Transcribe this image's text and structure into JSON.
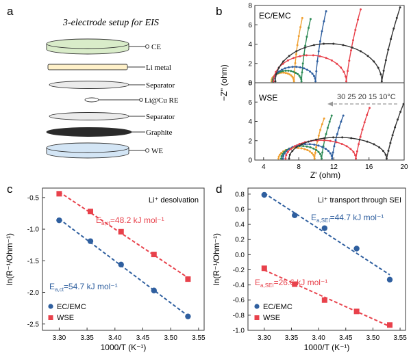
{
  "panels": {
    "a": {
      "letter": "a",
      "title": "3-electrode setup for EIS",
      "layers": [
        "CE",
        "Li metal",
        "Separator",
        "Li@Cu RE",
        "Separator",
        "Graphite",
        "WE"
      ]
    },
    "b": {
      "letter": "b"
    },
    "c": {
      "letter": "c"
    },
    "d": {
      "letter": "d"
    }
  },
  "colors": {
    "blue": "#2f5f9f",
    "red": "#e8414b",
    "orange": "#f0a030",
    "green": "#2e8b57",
    "black": "#333333",
    "ce_fill": "#d9ecc9",
    "li_fill": "#fff1c9",
    "sep_fill": "#ebebeb",
    "graphite": "#2a2a2a",
    "we_fill": "#d3e5f5"
  },
  "chart_data": [
    {
      "id": "b-top",
      "type": "line",
      "label": "EC/EMC",
      "xlim": [
        0,
        16
      ],
      "ylim": [
        0,
        8
      ],
      "yticks": [
        "0",
        "2",
        "4",
        "6",
        "8"
      ],
      "series": [
        {
          "temp": 30,
          "color": "orange",
          "r0": 1.8,
          "r1": 4.2,
          "peak": 0.9,
          "tailTop": 6.7
        },
        {
          "temp": 25,
          "color": "green",
          "r0": 1.9,
          "r1": 5.0,
          "peak": 1.1,
          "tailTop": 6.6
        },
        {
          "temp": 20,
          "color": "blue",
          "r0": 2.0,
          "r1": 6.5,
          "peak": 1.5,
          "tailTop": 7.4
        },
        {
          "temp": 15,
          "color": "red",
          "r0": 2.0,
          "r1": 9.8,
          "peak": 2.7,
          "tailTop": 7.6
        },
        {
          "temp": 10,
          "color": "black",
          "r0": 2.2,
          "r1": 13.6,
          "peak": 3.9,
          "tailTop": 7.8
        }
      ]
    },
    {
      "id": "b-bottom",
      "type": "line",
      "label": "WSE",
      "xlim": [
        3,
        20
      ],
      "ylim": [
        0,
        8
      ],
      "xticks": [
        "4",
        "8",
        "12",
        "16",
        "20"
      ],
      "yticks": [
        "0",
        "2",
        "4",
        "6",
        "8"
      ],
      "temps_label": "30 25 20 15 10°C",
      "xlabel": "Z' (ohm)",
      "ylabel": "−Z'' (ohm)",
      "ylabel_unit": "(ohm)",
      "series": [
        {
          "temp": 30,
          "color": "orange",
          "r0": 5.7,
          "r1": 9.8,
          "peak": 1.1,
          "tailTop": 4.3
        },
        {
          "temp": 25,
          "color": "green",
          "r0": 6.0,
          "r1": 10.6,
          "peak": 1.3,
          "tailTop": 4.6
        },
        {
          "temp": 20,
          "color": "blue",
          "r0": 6.2,
          "r1": 11.8,
          "peak": 1.5,
          "tailTop": 4.6
        },
        {
          "temp": 15,
          "color": "red",
          "r0": 6.5,
          "r1": 14.5,
          "peak": 1.9,
          "tailTop": 5.4
        },
        {
          "temp": 10,
          "color": "black",
          "r0": 6.9,
          "r1": 18.0,
          "peak": 2.2,
          "tailTop": 5.8
        }
      ]
    },
    {
      "id": "c",
      "type": "scatter",
      "title": "Li⁺ desolvation",
      "xlabel": "1000/T (K⁻¹)",
      "ylabel": "ln(R⁻¹/Ohm⁻¹)",
      "xlim": [
        3.27,
        3.56
      ],
      "ylim": [
        -2.6,
        -0.35
      ],
      "xticks": [
        "3.30",
        "3.35",
        "3.40",
        "3.45",
        "3.50",
        "3.55"
      ],
      "yticks": [
        "-2.5",
        "-2.0",
        "-1.5",
        "-1.0",
        "-0.5"
      ],
      "series": [
        {
          "name": "EC/EMC",
          "color": "blue",
          "marker": "circle",
          "x": [
            3.3,
            3.356,
            3.411,
            3.47,
            3.531
          ],
          "y": [
            -0.86,
            -1.19,
            -1.56,
            -1.97,
            -2.38
          ],
          "annotation": "E_a,ct=54.7 kJ mol⁻¹"
        },
        {
          "name": "WSE",
          "color": "red",
          "marker": "square",
          "x": [
            3.3,
            3.356,
            3.411,
            3.47,
            3.531
          ],
          "y": [
            -0.44,
            -0.72,
            -1.04,
            -1.4,
            -1.79
          ],
          "annotation": "E_a,ct=48.2 kJ mol⁻¹"
        }
      ],
      "legend": "bottom-left"
    },
    {
      "id": "d",
      "type": "scatter",
      "title": "Li⁺ transport through SEI",
      "xlabel": "1000/T (K⁻¹)",
      "ylabel": "ln(R⁻¹/Ohm⁻¹)",
      "xlim": [
        3.27,
        3.56
      ],
      "ylim": [
        -1.0,
        0.88
      ],
      "xticks": [
        "3.30",
        "3.35",
        "3.40",
        "3.45",
        "3.50",
        "3.55"
      ],
      "yticks": [
        "-1.0",
        "-0.8",
        "-0.6",
        "-0.4",
        "-0.2",
        "0.0",
        "0.2",
        "0.4",
        "0.6",
        "0.8"
      ],
      "series": [
        {
          "name": "EC/EMC",
          "color": "blue",
          "marker": "circle",
          "x": [
            3.3,
            3.356,
            3.411,
            3.47,
            3.531
          ],
          "y": [
            0.79,
            0.52,
            0.35,
            0.08,
            -0.33
          ],
          "annotation": "E_a,SEI=44.7 kJ mol⁻¹"
        },
        {
          "name": "WSE",
          "color": "red",
          "marker": "square",
          "x": [
            3.3,
            3.356,
            3.411,
            3.47,
            3.531
          ],
          "y": [
            -0.18,
            -0.39,
            -0.6,
            -0.75,
            -0.93
          ],
          "annotation": "E_a,SEI=26.6 kJ mol⁻¹"
        }
      ],
      "legend": "bottom-left"
    }
  ],
  "annotations_display": {
    "c_red": {
      "pre": "E",
      "sub": "a,ct",
      "post": "=48.2 kJ mol⁻¹"
    },
    "c_blue": {
      "pre": "E",
      "sub": "a,ct",
      "post": "=54.7 kJ  mol⁻¹"
    },
    "d_blue": {
      "pre": "E",
      "sub": "a,SEI",
      "post": "=44.7 kJ mol⁻¹"
    },
    "d_red": {
      "pre": "E",
      "sub": "a,SEI",
      "post": "=26.6 kJ mol⁻¹"
    }
  }
}
